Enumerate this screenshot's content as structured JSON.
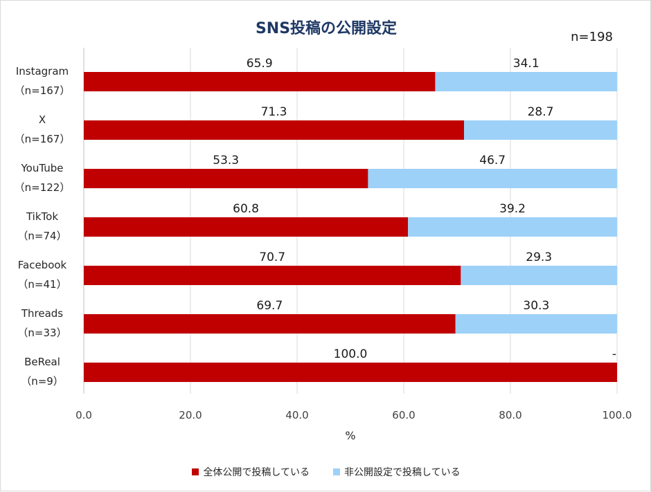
{
  "chart_data": {
    "type": "bar",
    "orientation": "horizontal",
    "stacked": true,
    "title": "SNS投稿の公開設定",
    "sample_note": "n=198",
    "xlabel": "%",
    "xlim": [
      0,
      100
    ],
    "x_ticks": [
      "0.0",
      "20.0",
      "40.0",
      "60.0",
      "80.0",
      "100.0"
    ],
    "grid": true,
    "legend_position": "bottom",
    "categories": [
      {
        "name": "Instagram",
        "n": "（n=167）"
      },
      {
        "name": "X",
        "n": "（n=167）"
      },
      {
        "name": "YouTube",
        "n": "（n=122）"
      },
      {
        "name": "TikTok",
        "n": "（n=74）"
      },
      {
        "name": "Facebook",
        "n": "（n=41）"
      },
      {
        "name": "Threads",
        "n": "（n=33）"
      },
      {
        "name": "BeReal",
        "n": "（n=9）"
      }
    ],
    "series": [
      {
        "name": "全体公開で投稿している",
        "color": "#c00000",
        "values": [
          65.9,
          71.3,
          53.3,
          60.8,
          70.7,
          69.7,
          100.0
        ],
        "labels": [
          "65.9",
          "71.3",
          "53.3",
          "60.8",
          "70.7",
          "69.7",
          "100.0"
        ]
      },
      {
        "name": "非公開設定で投稿している",
        "color": "#9dd1f8",
        "values": [
          34.1,
          28.7,
          46.7,
          39.2,
          29.3,
          30.3,
          0
        ],
        "labels": [
          "34.1",
          "28.7",
          "46.7",
          "39.2",
          "29.3",
          "30.3",
          "-"
        ]
      }
    ]
  }
}
